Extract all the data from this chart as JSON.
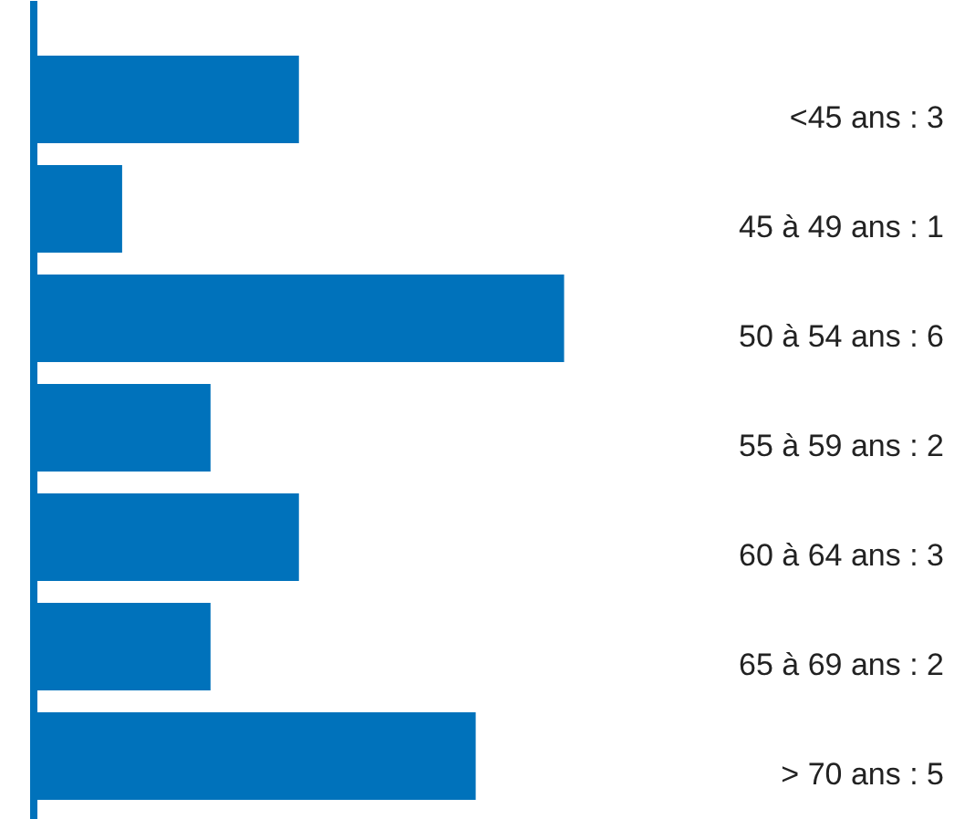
{
  "chart_data": {
    "type": "bar",
    "orientation": "horizontal",
    "categories": [
      null,
      null,
      null,
      null,
      null,
      null,
      null
    ],
    "values": [
      3,
      1,
      6,
      2,
      3,
      2,
      5
    ],
    "value_labels": [
      "<45 ans : 3",
      "45 à 49 ans : 1",
      "50 à 54 ans : 6",
      "55 à 59 ans : 2",
      "60 à 64 ans : 3",
      "65 à 69 ans : 2",
      "> 70 ans : 5"
    ],
    "color": "#0072bb"
  }
}
